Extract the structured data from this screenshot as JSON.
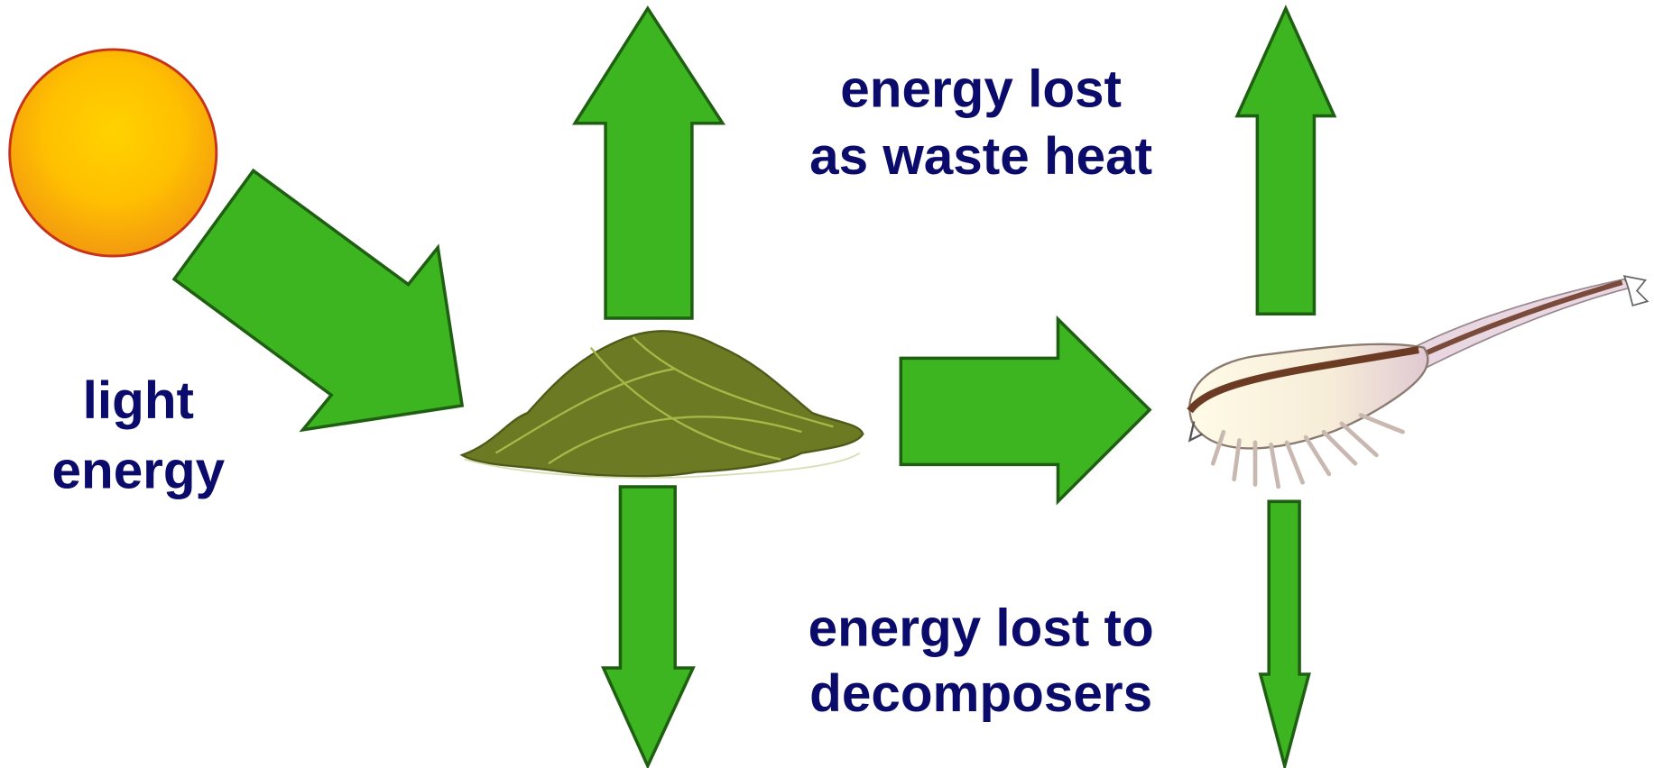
{
  "labels": {
    "light": [
      "light",
      "energy"
    ],
    "heat": [
      "energy lost",
      "as waste heat"
    ],
    "decomposers": [
      "energy lost to",
      "decomposers"
    ]
  }
}
